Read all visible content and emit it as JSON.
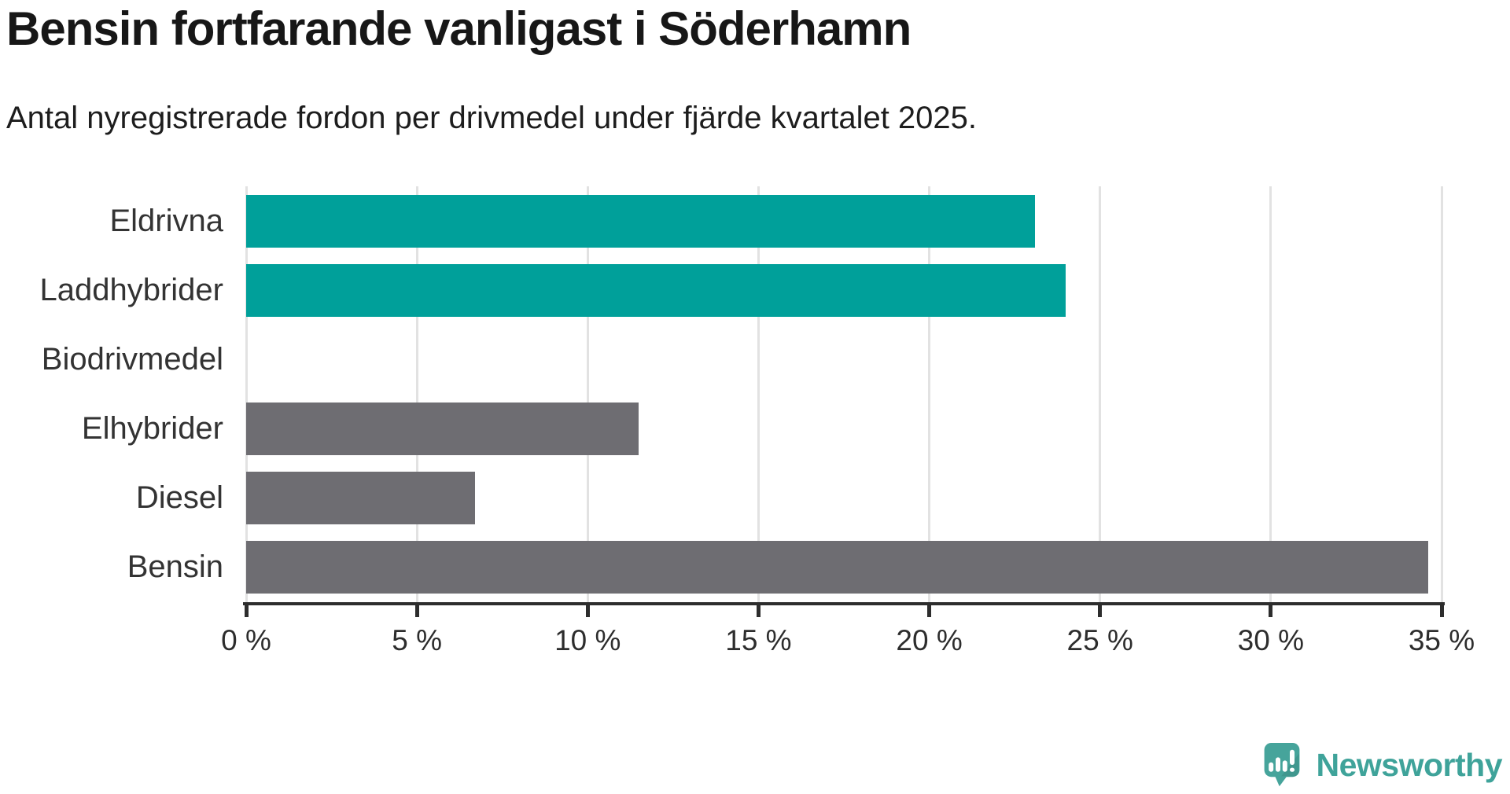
{
  "colors": {
    "heading": "#171717",
    "subheading": "#1d1d1d",
    "text": "#333333",
    "gridline": "#e2e2e2",
    "axis": "#2d2d2d",
    "accent_teal": "#00a09a",
    "neutral_gray": "#6e6d72",
    "brand": "#3fa39a",
    "brand_icon": "#46a49b"
  },
  "chart_data": {
    "type": "bar",
    "orientation": "horizontal",
    "title": "Bensin fortfarande vanligast i Söderhamn",
    "subtitle": "Antal nyregistrerade fordon per drivmedel under fjärde kvartalet 2025.",
    "categories": [
      "Eldrivna",
      "Laddhybrider",
      "Biodrivmedel",
      "Elhybrider",
      "Diesel",
      "Bensin"
    ],
    "values": [
      23.1,
      24.0,
      0,
      11.5,
      6.7,
      34.6
    ],
    "unit": "%",
    "bar_colors": [
      "#00a09a",
      "#00a09a",
      "#6e6d72",
      "#6e6d72",
      "#6e6d72",
      "#6e6d72"
    ],
    "xlim": [
      0,
      35
    ],
    "x_ticks": [
      {
        "value": 0,
        "label": "0 %"
      },
      {
        "value": 5,
        "label": "5 %"
      },
      {
        "value": 10,
        "label": "10 %"
      },
      {
        "value": 15,
        "label": "15 %"
      },
      {
        "value": 20,
        "label": "20 %"
      },
      {
        "value": 25,
        "label": "25 %"
      },
      {
        "value": 30,
        "label": "30 %"
      },
      {
        "value": 35,
        "label": "35 %"
      }
    ],
    "grid": true,
    "legend": false
  },
  "footer": {
    "brand": "Newsworthy",
    "logo_icon": "newsworthy-speech-bubble-bar-chart-icon"
  }
}
